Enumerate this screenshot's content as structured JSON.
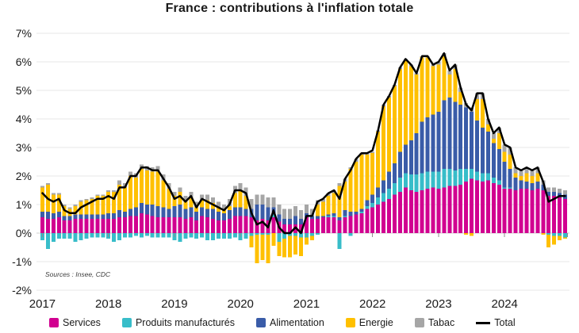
{
  "title": "France : contributions à l'inflation totale",
  "source_note": "Sources : Insee, CDC",
  "colors": {
    "services": "#D10090",
    "produits_manufactures": "#38BDC9",
    "alimentation": "#3A5CA8",
    "energie": "#FFC000",
    "tabac": "#A6A6A6",
    "total_line": "#000000",
    "gridline": "#E7E7E7",
    "zero_line": "#D2D2D2",
    "tick": "#8C8C8C"
  },
  "chart_data": {
    "type": "bar",
    "subtype": "stacked-monthly-bars-with-total-line",
    "title": "France : contributions à l'inflation totale",
    "x_start": "2017-01",
    "x_end": "2024-12",
    "x_frequency": "monthly",
    "x_tick_labels": [
      "2017",
      "2018",
      "2019",
      "2020",
      "2021",
      "2022",
      "2023",
      "2024"
    ],
    "y_tick_labels": [
      "7%",
      "6%",
      "5%",
      "4%",
      "3%",
      "2%",
      "1%",
      "0%",
      "-1%",
      "-2%"
    ],
    "ylim": [
      -2,
      7
    ],
    "y_step": 1,
    "y_unit": "percentage points (%)",
    "grid": "horizontal",
    "legend_position": "bottom",
    "series": [
      {
        "name": "Services",
        "color": "#D10090",
        "values": [
          0.55,
          0.5,
          0.5,
          0.55,
          0.45,
          0.45,
          0.5,
          0.5,
          0.5,
          0.5,
          0.5,
          0.5,
          0.5,
          0.5,
          0.55,
          0.55,
          0.6,
          0.6,
          0.7,
          0.65,
          0.6,
          0.55,
          0.55,
          0.55,
          0.55,
          0.55,
          0.5,
          0.55,
          0.45,
          0.6,
          0.55,
          0.5,
          0.45,
          0.45,
          0.5,
          0.6,
          0.6,
          0.6,
          0.55,
          0.45,
          0.5,
          0.45,
          0.55,
          0.4,
          0.3,
          0.3,
          0.3,
          0.3,
          0.55,
          0.5,
          0.5,
          0.55,
          0.55,
          0.55,
          0.45,
          0.55,
          0.6,
          0.65,
          0.7,
          0.85,
          0.9,
          1.0,
          1.1,
          1.2,
          1.35,
          1.45,
          1.6,
          1.5,
          1.45,
          1.5,
          1.55,
          1.6,
          1.55,
          1.6,
          1.65,
          1.65,
          1.7,
          1.8,
          1.9,
          1.85,
          1.8,
          1.85,
          1.75,
          1.7,
          1.55,
          1.55,
          1.5,
          1.55,
          1.55,
          1.5,
          1.55,
          1.5,
          1.3,
          1.3,
          1.25,
          1.2
        ]
      },
      {
        "name": "Produits manufacturés",
        "color": "#38BDC9",
        "values": [
          -0.25,
          -0.55,
          -0.3,
          -0.2,
          -0.2,
          -0.2,
          -0.3,
          -0.25,
          -0.2,
          -0.15,
          -0.15,
          -0.15,
          -0.2,
          -0.3,
          -0.25,
          -0.15,
          -0.15,
          -0.1,
          -0.15,
          -0.1,
          -0.15,
          -0.15,
          -0.15,
          -0.15,
          -0.25,
          -0.3,
          -0.2,
          -0.15,
          -0.2,
          -0.15,
          -0.25,
          -0.25,
          -0.2,
          -0.2,
          -0.2,
          -0.15,
          -0.25,
          -0.2,
          -0.1,
          -0.05,
          -0.05,
          -0.05,
          0.1,
          -0.3,
          -0.2,
          -0.1,
          -0.1,
          -0.15,
          -0.15,
          -0.1,
          -0.05,
          0.0,
          0.05,
          0.05,
          -0.55,
          0.05,
          -0.1,
          0.0,
          0.05,
          0.1,
          0.15,
          0.25,
          0.3,
          0.35,
          0.4,
          0.5,
          0.5,
          0.55,
          0.6,
          0.6,
          0.6,
          0.55,
          0.6,
          0.65,
          0.6,
          0.55,
          0.55,
          0.45,
          0.35,
          0.3,
          0.3,
          0.25,
          0.2,
          0.15,
          0.05,
          0.05,
          0.0,
          0.0,
          0.0,
          0.0,
          0.0,
          0.0,
          -0.05,
          -0.1,
          -0.1,
          -0.15
        ]
      },
      {
        "name": "Alimentation",
        "color": "#3A5CA8",
        "values": [
          0.2,
          0.25,
          0.2,
          0.2,
          0.15,
          0.15,
          0.15,
          0.15,
          0.15,
          0.15,
          0.15,
          0.15,
          0.2,
          0.2,
          0.25,
          0.2,
          0.25,
          0.3,
          0.35,
          0.35,
          0.4,
          0.4,
          0.35,
          0.3,
          0.4,
          0.45,
          0.35,
          0.35,
          0.3,
          0.3,
          0.3,
          0.35,
          0.3,
          0.25,
          0.3,
          0.3,
          0.3,
          0.25,
          0.3,
          0.55,
          0.5,
          0.45,
          0.25,
          0.25,
          0.2,
          0.2,
          0.3,
          0.2,
          0.15,
          0.1,
          0.1,
          0.05,
          0.05,
          0.1,
          0.1,
          0.2,
          0.15,
          0.1,
          0.1,
          0.2,
          0.3,
          0.35,
          0.45,
          0.6,
          0.7,
          0.9,
          1.0,
          1.2,
          1.45,
          1.8,
          1.9,
          2.0,
          2.1,
          2.4,
          2.5,
          2.4,
          2.25,
          2.15,
          2.0,
          1.8,
          1.6,
          1.45,
          1.2,
          1.1,
          0.9,
          0.65,
          0.45,
          0.3,
          0.25,
          0.25,
          0.25,
          0.2,
          0.15,
          0.15,
          0.15,
          0.15
        ]
      },
      {
        "name": "Energie",
        "color": "#FFC000",
        "values": [
          0.85,
          0.95,
          0.65,
          0.6,
          0.35,
          0.25,
          0.3,
          0.45,
          0.5,
          0.55,
          0.65,
          0.65,
          0.75,
          0.75,
          0.9,
          0.85,
          1.15,
          1.05,
          1.2,
          1.2,
          1.15,
          1.2,
          0.95,
          0.7,
          0.35,
          0.45,
          0.25,
          0.35,
          0.15,
          0.25,
          0.3,
          0.2,
          0.15,
          0.1,
          0.15,
          0.5,
          0.6,
          0.45,
          -0.4,
          -1.0,
          -0.9,
          -1.0,
          -0.45,
          -0.5,
          -0.65,
          -0.75,
          -0.65,
          -0.65,
          -0.25,
          -0.15,
          0.4,
          0.5,
          0.65,
          0.7,
          1.1,
          1.0,
          1.5,
          1.75,
          1.9,
          1.6,
          1.45,
          1.95,
          2.6,
          2.6,
          2.7,
          2.9,
          2.95,
          2.6,
          2.05,
          2.25,
          2.1,
          1.7,
          1.65,
          1.55,
          0.8,
          1.15,
          0.45,
          -0.05,
          -0.1,
          0.75,
          1.0,
          0.25,
          0.15,
          0.55,
          0.35,
          0.5,
          0.15,
          0.15,
          0.3,
          0.25,
          0.3,
          -0.05,
          -0.45,
          -0.3,
          -0.15,
          -0.05
        ]
      },
      {
        "name": "Tabac",
        "color": "#A6A6A6",
        "values": [
          0.05,
          0.05,
          0.05,
          0.05,
          0.05,
          0.05,
          0.05,
          0.05,
          0.05,
          0.05,
          0.05,
          0.05,
          0.05,
          0.05,
          0.15,
          0.15,
          0.15,
          0.15,
          0.15,
          0.15,
          0.15,
          0.2,
          0.2,
          0.2,
          0.15,
          0.15,
          0.2,
          0.2,
          0.2,
          0.2,
          0.2,
          0.2,
          0.2,
          0.2,
          0.25,
          0.25,
          0.25,
          0.3,
          0.35,
          0.35,
          0.35,
          0.35,
          0.35,
          0.35,
          0.35,
          0.35,
          0.35,
          0.3,
          0.3,
          0.25,
          0.15,
          0.1,
          0.1,
          0.1,
          0.1,
          0.1,
          0.05,
          0.1,
          0.05,
          0.05,
          0.05,
          0.05,
          0.05,
          0.05,
          0.05,
          0.05,
          0.05,
          0.05,
          0.05,
          0.05,
          0.05,
          0.05,
          0.1,
          0.1,
          0.15,
          0.15,
          0.15,
          0.15,
          0.15,
          0.2,
          0.2,
          0.2,
          0.2,
          0.2,
          0.25,
          0.25,
          0.2,
          0.2,
          0.2,
          0.2,
          0.2,
          0.15,
          0.15,
          0.15,
          0.15,
          0.15
        ]
      }
    ],
    "line": {
      "name": "Total",
      "color": "#000000",
      "values": [
        1.4,
        1.2,
        1.1,
        1.2,
        0.8,
        0.7,
        0.7,
        0.9,
        1.0,
        1.1,
        1.2,
        1.2,
        1.3,
        1.2,
        1.6,
        1.6,
        2.0,
        2.0,
        2.3,
        2.3,
        2.2,
        2.2,
        1.9,
        1.6,
        1.2,
        1.3,
        1.1,
        1.3,
        0.9,
        1.2,
        1.1,
        1.0,
        0.9,
        0.8,
        1.0,
        1.5,
        1.5,
        1.4,
        0.7,
        0.3,
        0.4,
        0.2,
        0.8,
        0.2,
        0.0,
        0.0,
        0.2,
        0.0,
        0.6,
        0.6,
        1.1,
        1.2,
        1.4,
        1.5,
        1.2,
        1.9,
        2.2,
        2.6,
        2.8,
        2.8,
        2.9,
        3.6,
        4.5,
        4.8,
        5.2,
        5.8,
        6.1,
        5.9,
        5.6,
        6.2,
        6.2,
        5.9,
        6.0,
        6.3,
        5.7,
        5.9,
        5.1,
        4.5,
        4.3,
        4.9,
        4.9,
        4.0,
        3.5,
        3.7,
        3.1,
        3.0,
        2.3,
        2.2,
        2.3,
        2.2,
        2.3,
        1.8,
        1.1,
        1.2,
        1.3,
        1.3
      ]
    }
  },
  "legend": [
    {
      "label": "Services",
      "color": "#D10090",
      "kind": "box"
    },
    {
      "label": "Produits manufacturés",
      "color": "#38BDC9",
      "kind": "box"
    },
    {
      "label": "Alimentation",
      "color": "#3A5CA8",
      "kind": "box"
    },
    {
      "label": "Energie",
      "color": "#FFC000",
      "kind": "box"
    },
    {
      "label": "Tabac",
      "color": "#A6A6A6",
      "kind": "box"
    },
    {
      "label": "Total",
      "color": "#000000",
      "kind": "line"
    }
  ]
}
